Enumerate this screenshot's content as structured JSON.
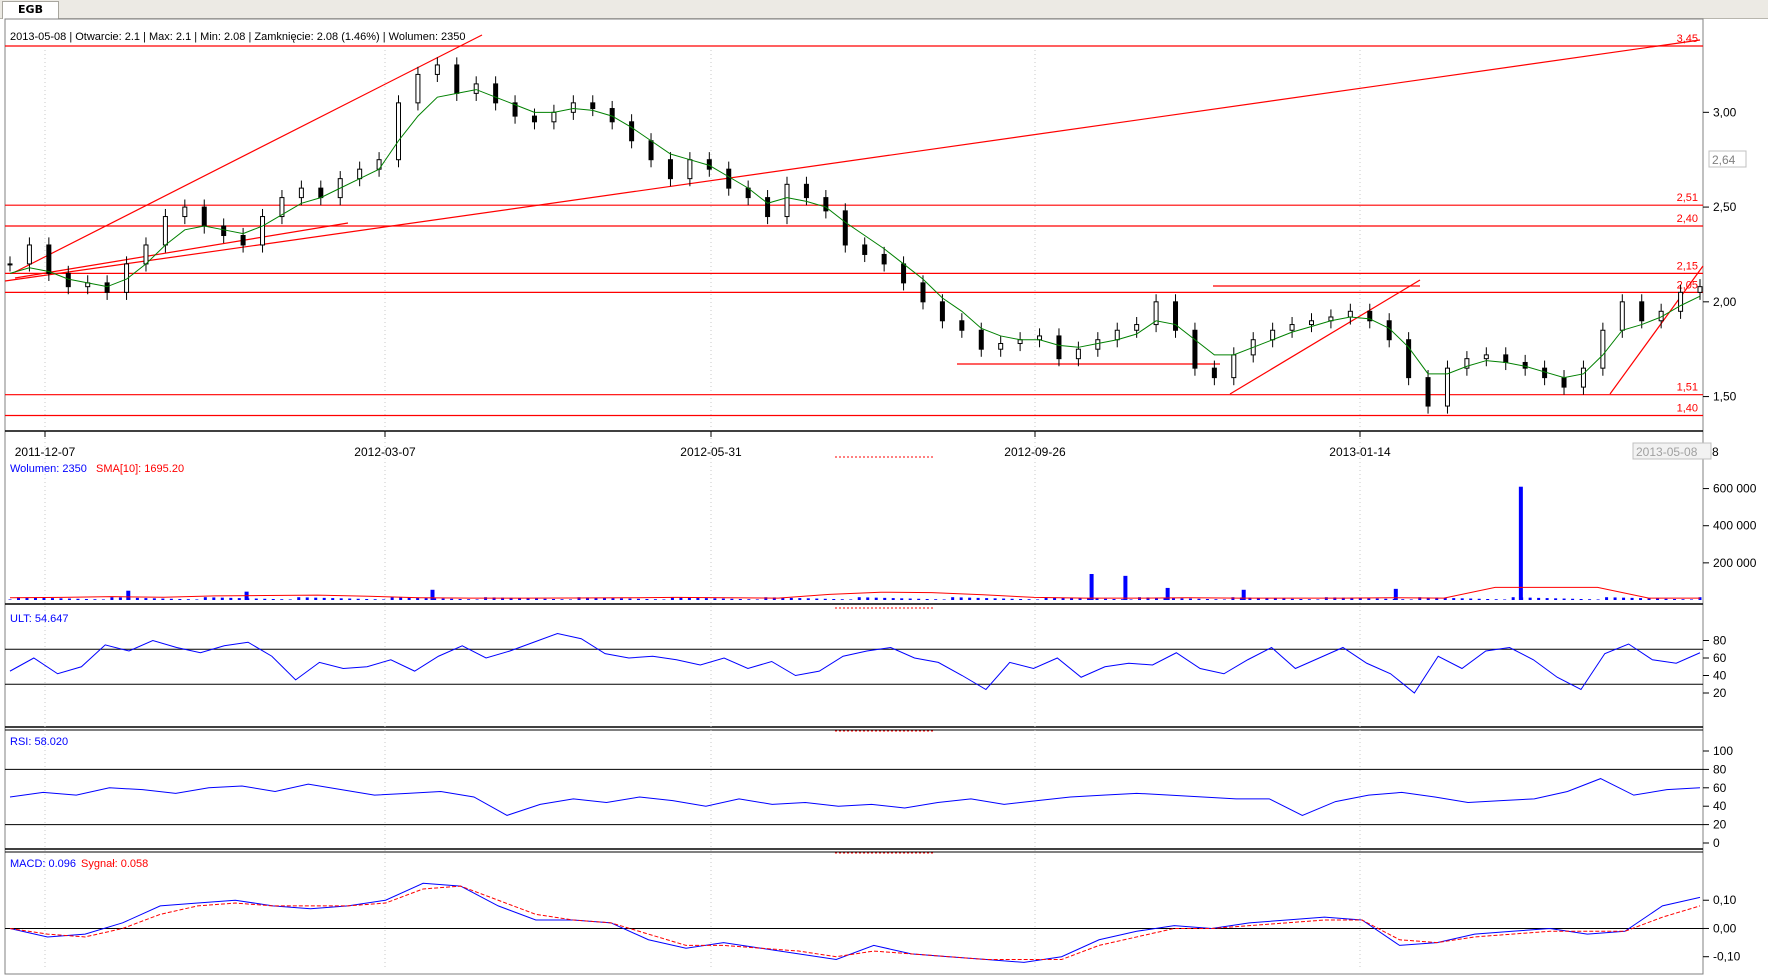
{
  "tab": {
    "label": "EGB"
  },
  "price_info": "2013-05-08 | Otwarcie: 2.1 | Max: 2.1 | Min: 2.08 | Zamknięcie: 2.08 (1.46%)  | Wolumen: 2350",
  "current_price_tag": "2,64",
  "current_date_tag": "2013-05-08",
  "date_tag_suffix": "8",
  "colors": {
    "support_lines": "#ff0000",
    "ma_line": "#008000",
    "volume_bars": "#0000ff",
    "indicator_line": "#0000ff",
    "signal_line": "#ff0000",
    "candle_body": "#000000"
  },
  "chart_data": [
    {
      "type": "candlestick",
      "x_ticks": [
        "2011-12-07",
        "2012-03-07",
        "2012-05-31",
        "2012-09-26",
        "2013-01-14"
      ],
      "y_ticks": [
        "3,00",
        "2,50",
        "2,00",
        "1,50"
      ],
      "ylim": [
        1.35,
        3.35
      ],
      "horizontal_levels": [
        {
          "value": 3.45,
          "label": "3,45"
        },
        {
          "value": 2.51,
          "label": "2,51"
        },
        {
          "value": 2.4,
          "label": "2,40"
        },
        {
          "value": 2.15,
          "label": "2,15"
        },
        {
          "value": 2.05,
          "label": "2,05"
        },
        {
          "value": 1.51,
          "label": "1,51"
        },
        {
          "value": 1.4,
          "label": "1,40"
        }
      ],
      "series": [
        {
          "name": "close",
          "values": [
            2.2,
            2.3,
            2.15,
            2.08,
            2.1,
            2.05,
            2.2,
            2.3,
            2.45,
            2.5,
            2.4,
            2.35,
            2.3,
            2.45,
            2.55,
            2.6,
            2.55,
            2.65,
            2.7,
            2.75,
            3.05,
            3.2,
            3.25,
            3.1,
            3.15,
            3.05,
            2.98,
            2.95,
            3.0,
            3.05,
            3.02,
            2.95,
            2.85,
            2.75,
            2.65,
            2.75,
            2.7,
            2.6,
            2.55,
            2.45,
            2.62,
            2.55,
            2.48,
            2.3,
            2.25,
            2.2,
            2.1,
            2.0,
            1.9,
            1.85,
            1.75,
            1.78,
            1.8,
            1.82,
            1.7,
            1.75,
            1.8,
            1.85,
            1.88,
            2.0,
            1.85,
            1.65,
            1.6,
            1.72,
            1.8,
            1.85,
            1.88,
            1.9,
            1.92,
            1.95,
            1.9,
            1.8,
            1.6,
            1.45,
            1.65,
            1.7,
            1.72,
            1.68,
            1.65,
            1.6,
            1.55,
            1.65,
            1.85,
            2.0,
            1.9,
            1.95,
            2.05,
            2.08
          ]
        },
        {
          "name": "sma",
          "values": [
            2.15,
            2.18,
            2.16,
            2.12,
            2.1,
            2.08,
            2.12,
            2.2,
            2.3,
            2.38,
            2.4,
            2.38,
            2.36,
            2.4,
            2.46,
            2.52,
            2.55,
            2.6,
            2.65,
            2.7,
            2.85,
            2.98,
            3.08,
            3.1,
            3.12,
            3.08,
            3.04,
            3.0,
            3.0,
            3.02,
            3.01,
            2.98,
            2.92,
            2.85,
            2.78,
            2.75,
            2.72,
            2.66,
            2.6,
            2.52,
            2.55,
            2.53,
            2.5,
            2.42,
            2.35,
            2.28,
            2.2,
            2.12,
            2.02,
            1.95,
            1.86,
            1.82,
            1.8,
            1.8,
            1.77,
            1.76,
            1.78,
            1.8,
            1.83,
            1.9,
            1.88,
            1.8,
            1.72,
            1.72,
            1.76,
            1.8,
            1.84,
            1.87,
            1.9,
            1.92,
            1.91,
            1.86,
            1.76,
            1.62,
            1.62,
            1.66,
            1.69,
            1.68,
            1.66,
            1.63,
            1.6,
            1.62,
            1.72,
            1.85,
            1.88,
            1.92,
            1.98,
            2.03
          ]
        }
      ]
    },
    {
      "type": "bar",
      "title": "Wolumen: 2350",
      "sma_label": "SMA[10]: 1695.20",
      "y_ticks": [
        "600 000",
        "400 000",
        "200 000"
      ],
      "ylim": [
        0,
        700000
      ],
      "spikes": [
        {
          "at": 0.07,
          "value": 50000
        },
        {
          "at": 0.14,
          "value": 45000
        },
        {
          "at": 0.25,
          "value": 55000
        },
        {
          "at": 0.64,
          "value": 140000
        },
        {
          "at": 0.66,
          "value": 130000
        },
        {
          "at": 0.685,
          "value": 65000
        },
        {
          "at": 0.73,
          "value": 55000
        },
        {
          "at": 0.82,
          "value": 60000
        },
        {
          "at": 0.894,
          "value": 610000
        }
      ],
      "sma_values": [
        12000,
        14000,
        18000,
        15000,
        22000,
        24000,
        26000,
        20000,
        12000,
        10000,
        10000,
        11000,
        12000,
        14000,
        12000,
        10000,
        30000,
        42000,
        40000,
        28000,
        14000,
        10000,
        10000,
        12000,
        10000,
        10000,
        10000,
        12000,
        10000,
        68000,
        68000,
        68000,
        10000,
        10000
      ]
    },
    {
      "type": "line",
      "title": "ULT: 54.647",
      "y_ticks": [
        "80",
        "60",
        "40",
        "20"
      ],
      "ylim": [
        12,
        92
      ],
      "levels": [
        70,
        30
      ],
      "series": [
        {
          "name": "ULT",
          "values": [
            45,
            60,
            42,
            50,
            75,
            68,
            80,
            72,
            66,
            74,
            78,
            62,
            35,
            55,
            48,
            50,
            58,
            45,
            62,
            74,
            60,
            68,
            78,
            88,
            82,
            65,
            60,
            62,
            58,
            52,
            60,
            48,
            56,
            40,
            45,
            62,
            68,
            72,
            60,
            55,
            40,
            24,
            55,
            48,
            60,
            38,
            50,
            54,
            52,
            66,
            48,
            42,
            58,
            72,
            48,
            60,
            72,
            54,
            42,
            20,
            62,
            48,
            68,
            72,
            58,
            38,
            24,
            65,
            76,
            58,
            54,
            66
          ]
        }
      ]
    },
    {
      "type": "line",
      "title": "RSI: 58.020",
      "y_ticks": [
        "100",
        "80",
        "60",
        "40",
        "20",
        "0"
      ],
      "ylim": [
        0,
        100
      ],
      "levels": [
        80,
        20
      ],
      "series": [
        {
          "name": "RSI",
          "values": [
            50,
            55,
            52,
            60,
            58,
            54,
            60,
            62,
            56,
            64,
            58,
            52,
            54,
            56,
            50,
            30,
            42,
            48,
            44,
            50,
            46,
            40,
            48,
            42,
            44,
            40,
            42,
            38,
            44,
            48,
            42,
            46,
            50,
            52,
            54,
            52,
            50,
            48,
            48,
            30,
            45,
            52,
            55,
            50,
            44,
            46,
            48,
            56,
            70,
            52,
            58,
            60
          ]
        }
      ]
    },
    {
      "type": "line",
      "title": "MACD: 0.096",
      "signal_label": "Sygnał: 0.058",
      "y_ticks": [
        "0,10",
        "0,00",
        "-0,10"
      ],
      "ylim": [
        -0.14,
        0.2
      ],
      "levels": [
        0
      ],
      "series": [
        {
          "name": "MACD",
          "values": [
            0.0,
            -0.03,
            -0.02,
            0.02,
            0.08,
            0.09,
            0.1,
            0.08,
            0.07,
            0.08,
            0.1,
            0.16,
            0.15,
            0.08,
            0.03,
            0.03,
            0.02,
            -0.04,
            -0.07,
            -0.05,
            -0.07,
            -0.09,
            -0.11,
            -0.06,
            -0.09,
            -0.1,
            -0.11,
            -0.12,
            -0.1,
            -0.04,
            -0.01,
            0.01,
            0.0,
            0.02,
            0.03,
            0.04,
            0.03,
            -0.06,
            -0.05,
            -0.02,
            -0.01,
            0.0,
            -0.02,
            -0.01,
            0.08,
            0.11
          ]
        },
        {
          "name": "Sygnał",
          "values": [
            0.0,
            -0.02,
            -0.03,
            0.0,
            0.05,
            0.08,
            0.09,
            0.08,
            0.08,
            0.08,
            0.09,
            0.14,
            0.15,
            0.1,
            0.05,
            0.03,
            0.02,
            -0.02,
            -0.06,
            -0.06,
            -0.07,
            -0.08,
            -0.1,
            -0.08,
            -0.09,
            -0.1,
            -0.11,
            -0.11,
            -0.11,
            -0.06,
            -0.03,
            0.0,
            0.0,
            0.01,
            0.02,
            0.03,
            0.03,
            -0.04,
            -0.05,
            -0.03,
            -0.02,
            -0.01,
            -0.01,
            -0.01,
            0.04,
            0.08
          ]
        }
      ]
    }
  ]
}
